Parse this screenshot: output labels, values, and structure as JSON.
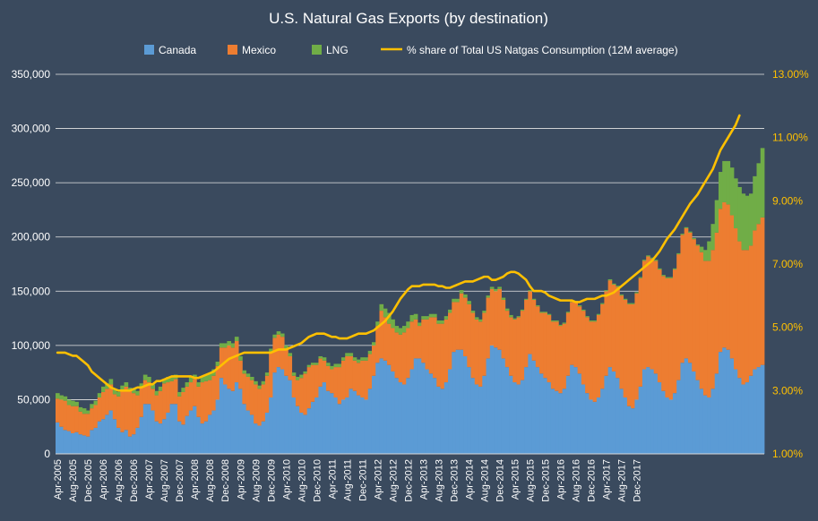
{
  "chart_data": {
    "type": "bar",
    "stacked": true,
    "title": "U.S. Natural Gas Exports (by destination)",
    "xlabel": "",
    "ylabel": "",
    "legend_position": "top",
    "grid": true,
    "ylim": [
      0,
      350000
    ],
    "y_ticks": [
      "0",
      "50,000",
      "100,000",
      "150,000",
      "200,000",
      "250,000",
      "300,000",
      "350,000"
    ],
    "y2lim": [
      1.0,
      13.0
    ],
    "y2_ticks": [
      "1.00%",
      "3.00%",
      "5.00%",
      "7.00%",
      "9.00%",
      "11.00%",
      "13.00%"
    ],
    "x_tick_labels": [
      "Apr-2005",
      "Aug-2005",
      "Dec-2005",
      "Apr-2006",
      "Aug-2006",
      "Dec-2006",
      "Apr-2007",
      "Aug-2007",
      "Dec-2007",
      "Apr-2008",
      "Aug-2008",
      "Dec-2008",
      "Apr-2009",
      "Aug-2009",
      "Dec-2009",
      "Apr-2010",
      "Aug-2010",
      "Dec-2010",
      "Apr-2011",
      "Aug-2011",
      "Dec-2011",
      "Apr-2012",
      "Aug-2012",
      "Dec-2012",
      "Apr-2013",
      "Aug-2013",
      "Dec-2013",
      "Apr-2014",
      "Aug-2014",
      "Dec-2014",
      "Apr-2015",
      "Aug-2015",
      "Dec-2015",
      "Apr-2016",
      "Aug-2016",
      "Dec-2016",
      "Apr-2017",
      "Aug-2017",
      "Dec-2017"
    ],
    "x_start": "Apr-2005",
    "colors": {
      "canada": "#5b9bd5",
      "mexico": "#ed7d31",
      "lng": "#70ad47",
      "share": "#ffc000",
      "grid": "#e6e6e6",
      "text": "#ffffff",
      "y2_text": "#ffc000"
    },
    "series": [
      {
        "name": "Canada",
        "color": "#5b9bd5",
        "values": [
          29000,
          25000,
          22000,
          21000,
          19000,
          20000,
          18000,
          17000,
          16000,
          22000,
          24000,
          30000,
          32000,
          36000,
          40000,
          32000,
          24000,
          20000,
          22000,
          16000,
          18000,
          24000,
          34000,
          46000,
          46000,
          40000,
          30000,
          28000,
          32000,
          38000,
          46000,
          46000,
          30000,
          27000,
          35000,
          40000,
          44000,
          34000,
          28000,
          30000,
          36000,
          40000,
          50000,
          70000,
          64000,
          60000,
          58000,
          66000,
          60000,
          46000,
          40000,
          36000,
          28000,
          26000,
          30000,
          38000,
          52000,
          75000,
          80000,
          78000,
          72000,
          68000,
          52000,
          44000,
          38000,
          36000,
          42000,
          48000,
          52000,
          62000,
          66000,
          58000,
          56000,
          52000,
          46000,
          50000,
          52000,
          60000,
          58000,
          54000,
          52000,
          50000,
          60000,
          72000,
          84000,
          88000,
          86000,
          82000,
          76000,
          70000,
          66000,
          64000,
          70000,
          78000,
          88000,
          88000,
          84000,
          78000,
          74000,
          70000,
          62000,
          60000,
          66000,
          78000,
          94000,
          96000,
          96000,
          90000,
          80000,
          70000,
          64000,
          62000,
          72000,
          88000,
          100000,
          98000,
          96000,
          88000,
          80000,
          72000,
          66000,
          64000,
          68000,
          80000,
          92000,
          86000,
          80000,
          74000,
          70000,
          66000,
          60000,
          58000,
          56000,
          60000,
          72000,
          82000,
          80000,
          74000,
          64000,
          56000,
          50000,
          48000,
          52000,
          60000,
          72000,
          80000,
          76000,
          70000,
          60000,
          52000,
          44000,
          42000,
          50000,
          62000,
          78000,
          80000,
          78000,
          74000,
          66000,
          58000,
          52000,
          50000,
          56000,
          68000,
          84000,
          88000,
          84000,
          76000,
          68000,
          60000,
          54000,
          52000,
          60000,
          74000,
          94000,
          98000,
          96000,
          88000,
          78000,
          70000,
          64000,
          66000,
          72000,
          78000,
          80000,
          82000
        ]
      },
      {
        "name": "Mexico",
        "color": "#ed7d31",
        "values": [
          22000,
          25000,
          27000,
          24000,
          25000,
          24000,
          21000,
          20000,
          21000,
          20000,
          21000,
          22000,
          25000,
          24000,
          24000,
          23000,
          29000,
          38000,
          40000,
          42000,
          38000,
          30000,
          27000,
          22000,
          20000,
          20000,
          24000,
          30000,
          33000,
          28000,
          21000,
          23000,
          23000,
          30000,
          27000,
          26000,
          25000,
          28000,
          38000,
          37000,
          32000,
          32000,
          31000,
          28000,
          34000,
          40000,
          40000,
          38000,
          26000,
          28000,
          31000,
          32000,
          36000,
          34000,
          34000,
          34000,
          42000,
          32000,
          30000,
          30000,
          25000,
          22000,
          20000,
          24000,
          32000,
          38000,
          38000,
          34000,
          30000,
          26000,
          20000,
          23000,
          22000,
          28000,
          34000,
          36000,
          38000,
          30000,
          28000,
          30000,
          34000,
          36000,
          32000,
          28000,
          34000,
          44000,
          40000,
          38000,
          40000,
          42000,
          44000,
          48000,
          46000,
          44000,
          36000,
          30000,
          40000,
          46000,
          52000,
          56000,
          58000,
          60000,
          58000,
          52000,
          46000,
          44000,
          52000,
          54000,
          58000,
          60000,
          60000,
          60000,
          58000,
          56000,
          52000,
          52000,
          56000,
          54000,
          52000,
          54000,
          58000,
          62000,
          64000,
          62000,
          58000,
          56000,
          56000,
          56000,
          60000,
          62000,
          62000,
          64000,
          62000,
          60000,
          58000,
          58000,
          60000,
          62000,
          68000,
          70000,
          72000,
          74000,
          76000,
          78000,
          78000,
          80000,
          80000,
          84000,
          86000,
          90000,
          94000,
          96000,
          98000,
          100000,
          100000,
          102000,
          102000,
          104000,
          104000,
          106000,
          110000,
          112000,
          114000,
          116000,
          118000,
          120000,
          120000,
          122000,
          124000,
          126000,
          124000,
          126000,
          128000,
          130000,
          132000,
          134000,
          134000,
          132000,
          130000,
          126000,
          124000,
          122000,
          120000,
          128000,
          132000,
          136000,
          140000,
          134000
        ]
      },
      {
        "name": "LNG",
        "color": "#70ad47",
        "values": [
          5000,
          4000,
          4000,
          5000,
          5000,
          4000,
          4000,
          5000,
          3000,
          4000,
          4000,
          4000,
          5000,
          5000,
          5000,
          4000,
          4000,
          5000,
          4000,
          3000,
          4000,
          4000,
          4000,
          5000,
          5000,
          4000,
          4000,
          4000,
          4000,
          5000,
          4000,
          4000,
          4000,
          4000,
          4000,
          5000,
          4000,
          4000,
          5000,
          6000,
          6000,
          6000,
          4000,
          4000,
          4000,
          4000,
          4000,
          4000,
          4000,
          3000,
          3000,
          3000,
          3000,
          3000,
          3000,
          3000,
          3000,
          3000,
          3000,
          3000,
          3000,
          3000,
          3000,
          3000,
          3000,
          2000,
          2000,
          2000,
          2000,
          2000,
          3000,
          3000,
          3000,
          3000,
          3000,
          3000,
          3000,
          3000,
          3000,
          3000,
          3000,
          3000,
          3000,
          3000,
          4000,
          6000,
          8000,
          10000,
          8000,
          6000,
          6000,
          6000,
          6000,
          6000,
          5000,
          3000,
          3000,
          3000,
          3000,
          3000,
          3000,
          3000,
          3000,
          3000,
          3000,
          3000,
          3000,
          3000,
          3000,
          2000,
          2000,
          2000,
          2000,
          2000,
          2000,
          2000,
          2000,
          2000,
          2000,
          2000,
          1000,
          1000,
          1000,
          1000,
          1000,
          1000,
          1000,
          1000,
          1000,
          1000,
          1000,
          1000,
          1000,
          1000,
          1000,
          1000,
          1000,
          1000,
          1000,
          1000,
          1000,
          1000,
          1000,
          1000,
          1000,
          1000,
          1000,
          1000,
          1000,
          1000,
          1000,
          1000,
          1000,
          1000,
          1000,
          1000,
          1000,
          1000,
          1000,
          1000,
          1000,
          1000,
          1000,
          1000,
          1000,
          1000,
          1000,
          1000,
          1000,
          5000,
          10000,
          18000,
          24000,
          30000,
          34000,
          38000,
          40000,
          44000,
          46000,
          50000,
          52000,
          50000,
          48000,
          50000,
          56000,
          64000,
          72000,
          76000,
          80000,
          84000
        ]
      },
      {
        "name": "% share of Total US Natgas Consumption (12M average)",
        "color": "#ffc000",
        "axis": "secondary",
        "values": [
          4.2,
          4.2,
          4.2,
          4.15,
          4.1,
          4.1,
          4.0,
          3.9,
          3.8,
          3.6,
          3.5,
          3.4,
          3.3,
          3.2,
          3.1,
          3.05,
          3.0,
          3.0,
          3.0,
          3.0,
          3.05,
          3.1,
          3.1,
          3.15,
          3.2,
          3.2,
          3.3,
          3.3,
          3.35,
          3.4,
          3.45,
          3.45,
          3.45,
          3.45,
          3.45,
          3.45,
          3.4,
          3.4,
          3.45,
          3.5,
          3.55,
          3.6,
          3.7,
          3.8,
          3.9,
          4.0,
          4.05,
          4.1,
          4.15,
          4.2,
          4.2,
          4.2,
          4.2,
          4.2,
          4.2,
          4.2,
          4.2,
          4.25,
          4.3,
          4.3,
          4.3,
          4.35,
          4.4,
          4.45,
          4.5,
          4.6,
          4.7,
          4.75,
          4.8,
          4.8,
          4.8,
          4.75,
          4.7,
          4.7,
          4.65,
          4.65,
          4.65,
          4.7,
          4.75,
          4.8,
          4.8,
          4.8,
          4.85,
          4.9,
          5.0,
          5.1,
          5.2,
          5.35,
          5.5,
          5.7,
          5.9,
          6.05,
          6.2,
          6.3,
          6.3,
          6.3,
          6.35,
          6.35,
          6.35,
          6.35,
          6.3,
          6.3,
          6.25,
          6.25,
          6.3,
          6.35,
          6.4,
          6.45,
          6.45,
          6.45,
          6.5,
          6.55,
          6.6,
          6.6,
          6.5,
          6.5,
          6.55,
          6.6,
          6.7,
          6.75,
          6.75,
          6.7,
          6.6,
          6.5,
          6.3,
          6.15,
          6.15,
          6.15,
          6.1,
          6.0,
          5.95,
          5.9,
          5.85,
          5.85,
          5.85,
          5.85,
          5.8,
          5.8,
          5.85,
          5.9,
          5.9,
          5.9,
          5.95,
          6.0,
          6.0,
          6.05,
          6.1,
          6.2,
          6.3,
          6.4,
          6.5,
          6.6,
          6.7,
          6.8,
          6.9,
          7.0,
          7.1,
          7.25,
          7.4,
          7.6,
          7.8,
          7.95,
          8.1,
          8.3,
          8.5,
          8.7,
          8.9,
          9.05,
          9.2,
          9.4,
          9.6,
          9.8,
          10.0,
          10.3,
          10.6,
          10.8,
          11.0,
          11.2,
          11.4,
          11.7
        ]
      }
    ]
  }
}
